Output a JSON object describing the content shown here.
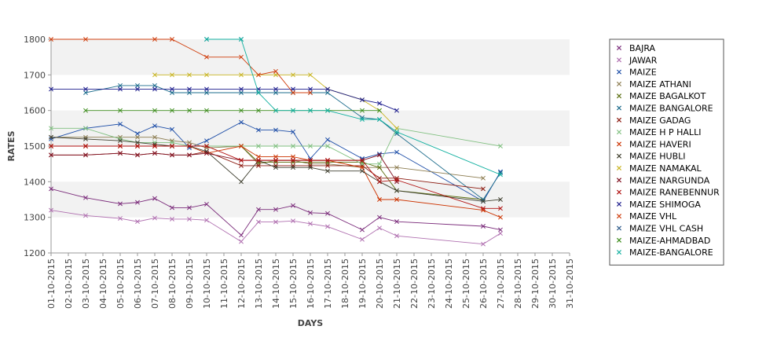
{
  "chart_data": {
    "type": "line",
    "title": "",
    "xlabel": "DAYS",
    "ylabel": "RATES",
    "ylim": [
      1200,
      1800
    ],
    "yticks": [
      1200,
      1300,
      1400,
      1500,
      1600,
      1700,
      1800
    ],
    "grid": "horizontal bands",
    "legend_position": "right",
    "marker": "x",
    "x": [
      "01-10-2015",
      "02-10-2015",
      "03-10-2015",
      "04-10-2015",
      "05-10-2015",
      "06-10-2015",
      "07-10-2015",
      "08-10-2015",
      "09-10-2015",
      "10-10-2015",
      "11-10-2015",
      "12-10-2015",
      "13-10-2015",
      "14-10-2015",
      "15-10-2015",
      "16-10-2015",
      "17-10-2015",
      "18-10-2015",
      "19-10-2015",
      "20-10-2015",
      "21-10-2015",
      "22-10-2015",
      "23-10-2015",
      "24-10-2015",
      "25-10-2015",
      "26-10-2015",
      "27-10-2015",
      "28-10-2015",
      "29-10-2015",
      "30-10-2015",
      "31-10-2015"
    ],
    "series": [
      {
        "name": "BAJRA",
        "color": "#7b2c7b",
        "points": [
          [
            0,
            1380
          ],
          [
            2,
            1355
          ],
          [
            4,
            1338
          ],
          [
            5,
            1342
          ],
          [
            6,
            1353
          ],
          [
            7,
            1327
          ],
          [
            8,
            1327
          ],
          [
            9,
            1337
          ],
          [
            11,
            1250
          ],
          [
            12,
            1322
          ],
          [
            13,
            1322
          ],
          [
            14,
            1333
          ],
          [
            15,
            1313
          ],
          [
            16,
            1311
          ],
          [
            18,
            1265
          ],
          [
            19,
            1300
          ],
          [
            20,
            1288
          ],
          [
            25,
            1275
          ],
          [
            26,
            1265
          ]
        ]
      },
      {
        "name": "JAWAR",
        "color": "#b070b0",
        "points": [
          [
            0,
            1320
          ],
          [
            2,
            1305
          ],
          [
            4,
            1297
          ],
          [
            5,
            1288
          ],
          [
            6,
            1298
          ],
          [
            7,
            1295
          ],
          [
            8,
            1295
          ],
          [
            9,
            1292
          ],
          [
            11,
            1232
          ],
          [
            12,
            1287
          ],
          [
            13,
            1287
          ],
          [
            14,
            1290
          ],
          [
            15,
            1282
          ],
          [
            16,
            1274
          ],
          [
            18,
            1238
          ],
          [
            19,
            1270
          ],
          [
            20,
            1248
          ],
          [
            25,
            1225
          ],
          [
            26,
            1255
          ]
        ]
      },
      {
        "name": "MAIZE",
        "color": "#1f4fa8",
        "points": [
          [
            0,
            1520
          ],
          [
            2,
            1550
          ],
          [
            4,
            1562
          ],
          [
            5,
            1535
          ],
          [
            6,
            1557
          ],
          [
            7,
            1547
          ],
          [
            8,
            1495
          ],
          [
            9,
            1515
          ],
          [
            11,
            1567
          ],
          [
            12,
            1545
          ],
          [
            13,
            1545
          ],
          [
            14,
            1540
          ],
          [
            15,
            1465
          ],
          [
            16,
            1518
          ],
          [
            18,
            1465
          ],
          [
            19,
            1478
          ],
          [
            20,
            1483
          ],
          [
            25,
            1345
          ],
          [
            26,
            1428
          ]
        ]
      },
      {
        "name": "MAIZE ATHANI",
        "color": "#8c7c50",
        "points": [
          [
            0,
            1525
          ],
          [
            2,
            1525
          ],
          [
            4,
            1525
          ],
          [
            5,
            1525
          ],
          [
            6,
            1525
          ],
          [
            7,
            1515
          ],
          [
            8,
            1510
          ],
          [
            9,
            1495
          ],
          [
            11,
            1500
          ],
          [
            12,
            1450
          ],
          [
            13,
            1460
          ],
          [
            14,
            1460
          ],
          [
            15,
            1450
          ],
          [
            16,
            1450
          ],
          [
            18,
            1440
          ],
          [
            19,
            1440
          ],
          [
            20,
            1440
          ],
          [
            25,
            1410
          ]
        ]
      },
      {
        "name": "MAIZE BAGALKOT",
        "color": "#5a6e0e",
        "points": [
          [
            0,
            1500
          ],
          [
            2,
            1500
          ],
          [
            4,
            1500
          ],
          [
            5,
            1500
          ],
          [
            6,
            1500
          ],
          [
            7,
            1500
          ],
          [
            8,
            1500
          ],
          [
            9,
            1500
          ],
          [
            11,
            1500
          ],
          [
            12,
            1455
          ],
          [
            13,
            1455
          ],
          [
            14,
            1455
          ],
          [
            15,
            1455
          ],
          [
            16,
            1455
          ],
          [
            18,
            1455
          ],
          [
            19,
            1440
          ],
          [
            20,
            1375
          ],
          [
            25,
            1350
          ]
        ]
      },
      {
        "name": "MAIZE BANGALORE",
        "color": "#1c6c8c",
        "points": [
          [
            2,
            1650
          ],
          [
            4,
            1670
          ],
          [
            5,
            1670
          ],
          [
            6,
            1670
          ],
          [
            7,
            1650
          ],
          [
            8,
            1650
          ],
          [
            9,
            1650
          ],
          [
            11,
            1650
          ],
          [
            12,
            1650
          ],
          [
            13,
            1650
          ],
          [
            14,
            1650
          ],
          [
            15,
            1650
          ],
          [
            16,
            1650
          ],
          [
            18,
            1580
          ],
          [
            19,
            1575
          ],
          [
            20,
            1535
          ],
          [
            25,
            1350
          ],
          [
            26,
            1425
          ]
        ]
      },
      {
        "name": "MAIZE GADAG",
        "color": "#8c1a10",
        "points": [
          [
            0,
            1475
          ],
          [
            2,
            1475
          ],
          [
            4,
            1480
          ],
          [
            5,
            1475
          ],
          [
            6,
            1480
          ],
          [
            7,
            1475
          ],
          [
            8,
            1475
          ],
          [
            9,
            1485
          ],
          [
            11,
            1445
          ],
          [
            12,
            1445
          ],
          [
            13,
            1445
          ],
          [
            14,
            1445
          ],
          [
            15,
            1445
          ],
          [
            16,
            1445
          ],
          [
            18,
            1445
          ],
          [
            19,
            1410
          ],
          [
            20,
            1410
          ],
          [
            25,
            1380
          ]
        ]
      },
      {
        "name": "MAIZE H P HALLI",
        "color": "#80c080",
        "points": [
          [
            0,
            1550
          ],
          [
            2,
            1550
          ],
          [
            4,
            1520
          ],
          [
            5,
            1510
          ],
          [
            6,
            1510
          ],
          [
            7,
            1510
          ],
          [
            8,
            1500
          ],
          [
            9,
            1500
          ],
          [
            11,
            1500
          ],
          [
            12,
            1500
          ],
          [
            13,
            1500
          ],
          [
            14,
            1500
          ],
          [
            15,
            1500
          ],
          [
            16,
            1500
          ],
          [
            18,
            1450
          ],
          [
            19,
            1450
          ],
          [
            20,
            1550
          ],
          [
            26,
            1500
          ]
        ]
      },
      {
        "name": "MAIZE HAVERI",
        "color": "#cc3300",
        "points": [
          [
            0,
            1500
          ],
          [
            2,
            1500
          ],
          [
            4,
            1500
          ],
          [
            5,
            1500
          ],
          [
            6,
            1500
          ],
          [
            7,
            1500
          ],
          [
            8,
            1500
          ],
          [
            9,
            1480
          ],
          [
            11,
            1500
          ],
          [
            12,
            1470
          ],
          [
            13,
            1470
          ],
          [
            14,
            1470
          ],
          [
            15,
            1460
          ],
          [
            16,
            1460
          ],
          [
            18,
            1440
          ],
          [
            19,
            1350
          ],
          [
            20,
            1350
          ],
          [
            25,
            1320
          ],
          [
            26,
            1300
          ]
        ]
      },
      {
        "name": "MAIZE HUBLI",
        "color": "#404030",
        "points": [
          [
            0,
            1525
          ],
          [
            2,
            1520
          ],
          [
            4,
            1515
          ],
          [
            5,
            1510
          ],
          [
            6,
            1505
          ],
          [
            7,
            1500
          ],
          [
            8,
            1500
          ],
          [
            9,
            1485
          ],
          [
            11,
            1400
          ],
          [
            12,
            1460
          ],
          [
            13,
            1440
          ],
          [
            14,
            1440
          ],
          [
            15,
            1440
          ],
          [
            16,
            1430
          ],
          [
            18,
            1430
          ],
          [
            19,
            1400
          ],
          [
            20,
            1375
          ],
          [
            25,
            1345
          ],
          [
            26,
            1350
          ]
        ]
      },
      {
        "name": "MAIZE NAMAKAL",
        "color": "#c8b420",
        "points": [
          [
            6,
            1700
          ],
          [
            7,
            1700
          ],
          [
            8,
            1700
          ],
          [
            9,
            1700
          ],
          [
            11,
            1700
          ],
          [
            12,
            1700
          ],
          [
            13,
            1700
          ],
          [
            14,
            1700
          ],
          [
            15,
            1700
          ],
          [
            16,
            1660
          ],
          [
            18,
            1630
          ],
          [
            19,
            1600
          ],
          [
            20,
            1550
          ]
        ]
      },
      {
        "name": "MAIZE NARGUNDA",
        "color": "#801020",
        "points": [
          [
            0,
            1475
          ],
          [
            2,
            1475
          ],
          [
            4,
            1480
          ],
          [
            5,
            1475
          ],
          [
            6,
            1480
          ],
          [
            7,
            1475
          ],
          [
            8,
            1475
          ],
          [
            9,
            1480
          ],
          [
            11,
            1460
          ],
          [
            12,
            1460
          ],
          [
            13,
            1460
          ],
          [
            14,
            1460
          ],
          [
            15,
            1460
          ],
          [
            16,
            1460
          ],
          [
            18,
            1460
          ],
          [
            19,
            1475
          ],
          [
            20,
            1400
          ]
        ]
      },
      {
        "name": "MAIZE RANEBENNUR",
        "color": "#b01010",
        "points": [
          [
            0,
            1500
          ],
          [
            2,
            1500
          ],
          [
            4,
            1500
          ],
          [
            5,
            1500
          ],
          [
            6,
            1500
          ],
          [
            7,
            1500
          ],
          [
            8,
            1500
          ],
          [
            9,
            1500
          ],
          [
            11,
            1460
          ],
          [
            12,
            1460
          ],
          [
            13,
            1460
          ],
          [
            14,
            1460
          ],
          [
            15,
            1460
          ],
          [
            16,
            1460
          ],
          [
            18,
            1460
          ],
          [
            19,
            1400
          ],
          [
            20,
            1405
          ],
          [
            25,
            1325
          ],
          [
            26,
            1325
          ]
        ]
      },
      {
        "name": "MAIZE SHIMOGA",
        "color": "#1a1a8c",
        "points": [
          [
            0,
            1660
          ],
          [
            2,
            1660
          ],
          [
            4,
            1660
          ],
          [
            5,
            1660
          ],
          [
            6,
            1660
          ],
          [
            7,
            1660
          ],
          [
            8,
            1660
          ],
          [
            9,
            1660
          ],
          [
            11,
            1660
          ],
          [
            12,
            1660
          ],
          [
            13,
            1660
          ],
          [
            14,
            1660
          ],
          [
            15,
            1660
          ],
          [
            16,
            1660
          ],
          [
            18,
            1630
          ],
          [
            19,
            1620
          ],
          [
            20,
            1600
          ]
        ]
      },
      {
        "name": "MAIZE VHL",
        "color": "#d04010",
        "points": [
          [
            0,
            1800
          ],
          [
            2,
            1800
          ],
          [
            6,
            1800
          ],
          [
            7,
            1800
          ],
          [
            9,
            1750
          ],
          [
            11,
            1750
          ],
          [
            12,
            1700
          ],
          [
            13,
            1710
          ],
          [
            14,
            1650
          ],
          [
            15,
            1650
          ]
        ]
      },
      {
        "name": "MAIZE VHL CASH",
        "color": "#305c8c",
        "points": [
          [
            9,
            1800
          ],
          [
            11,
            1800
          ]
        ]
      },
      {
        "name": "MAIZE-AHMADBAD",
        "color": "#3c8c1c",
        "points": [
          [
            2,
            1600
          ],
          [
            4,
            1600
          ],
          [
            6,
            1600
          ],
          [
            7,
            1600
          ],
          [
            8,
            1600
          ],
          [
            9,
            1600
          ],
          [
            11,
            1600
          ],
          [
            12,
            1600
          ],
          [
            13,
            1600
          ],
          [
            14,
            1600
          ],
          [
            15,
            1600
          ],
          [
            16,
            1600
          ],
          [
            18,
            1600
          ],
          [
            19,
            1600
          ]
        ]
      },
      {
        "name": "MAIZE-BANGALORE",
        "color": "#12b0a0",
        "points": [
          [
            9,
            1800
          ],
          [
            11,
            1800
          ],
          [
            12,
            1650
          ],
          [
            13,
            1600
          ],
          [
            14,
            1600
          ],
          [
            15,
            1600
          ],
          [
            16,
            1600
          ],
          [
            18,
            1575
          ],
          [
            19,
            1575
          ],
          [
            20,
            1540
          ],
          [
            26,
            1420
          ]
        ]
      }
    ]
  }
}
